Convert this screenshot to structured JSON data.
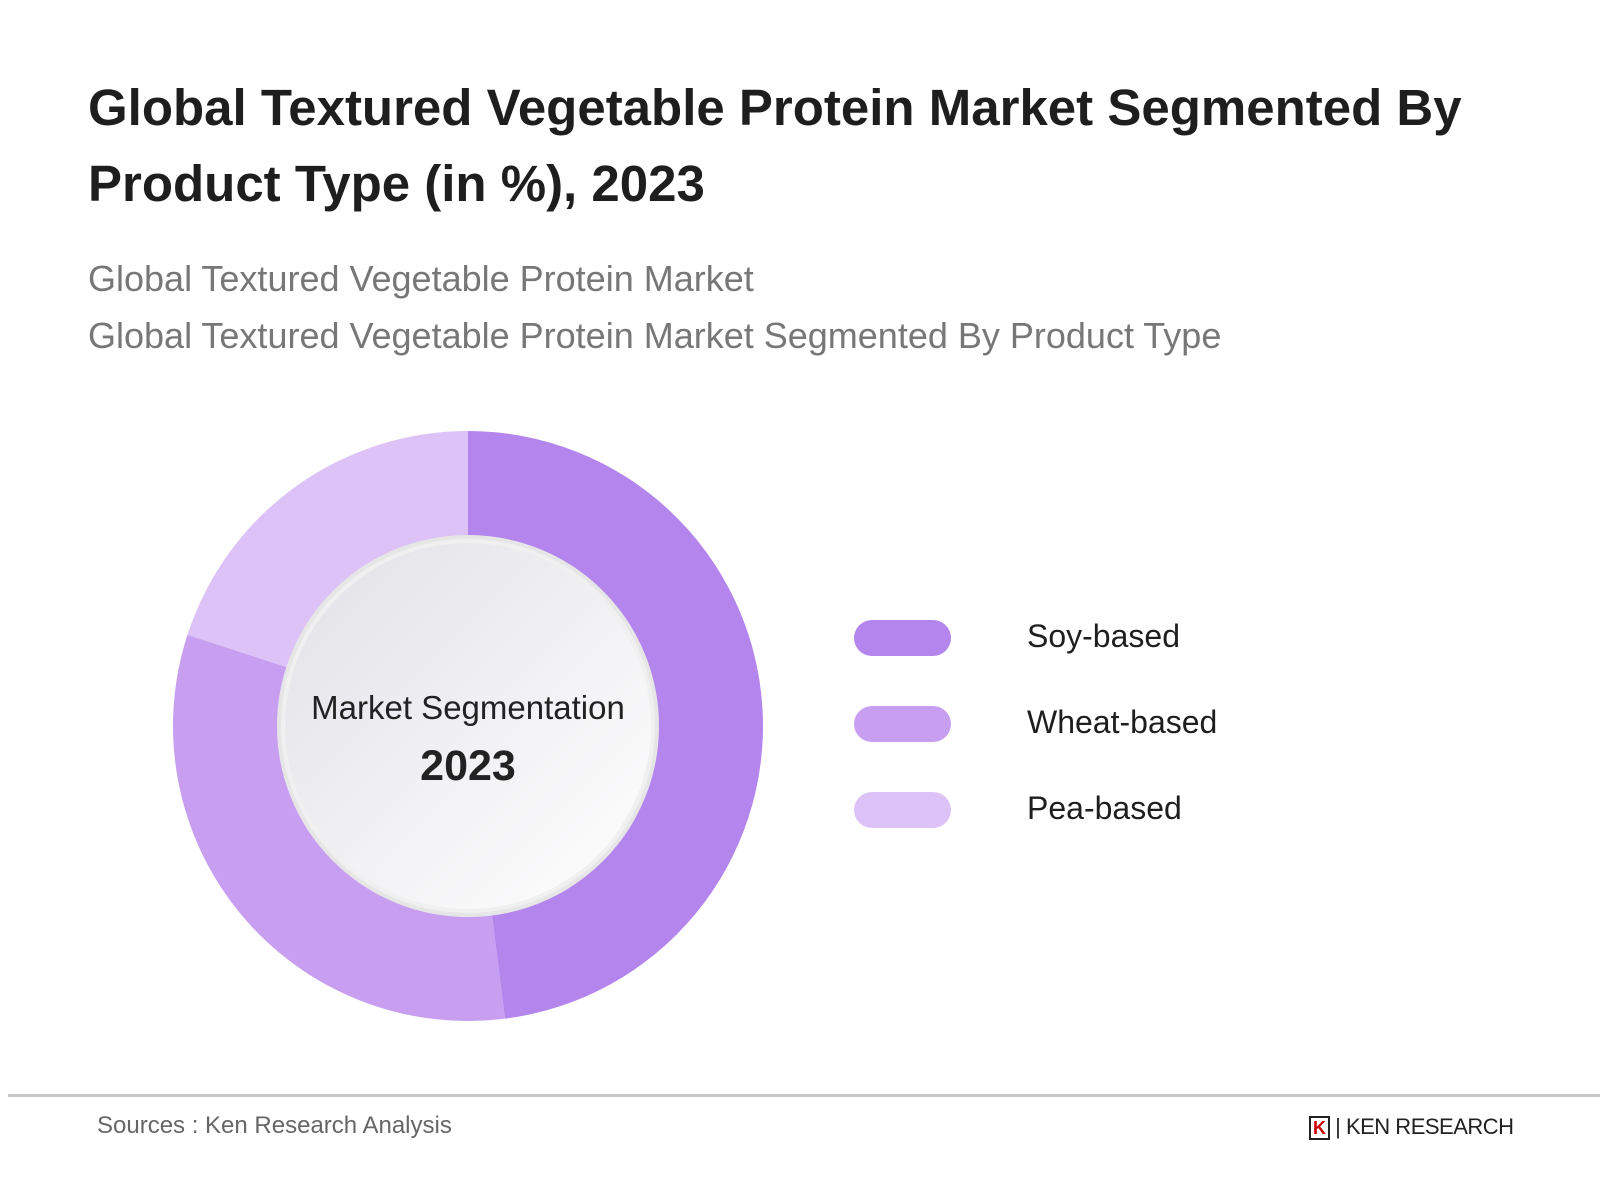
{
  "title": "Global Textured Vegetable Protein Market Segmented By Product Type (in %), 2023",
  "subtitle1": "Global Textured Vegetable Protein Market",
  "subtitle2": "Global Textured Vegetable Protein Market Segmented By Product Type",
  "center": {
    "label": "Market Segmentation",
    "year": "2023"
  },
  "footer": {
    "source": "Sources : Ken Research Analysis",
    "logo": "KEN RESEARCH"
  },
  "chart_data": {
    "type": "pie",
    "variant": "donut",
    "legend": "right",
    "categories": [
      "Soy-based",
      "Wheat-based",
      "Pea-based"
    ],
    "values": [
      48,
      32,
      20
    ],
    "colors": [
      "#b485ec",
      "#c79ef0",
      "#dcc2f7"
    ]
  }
}
